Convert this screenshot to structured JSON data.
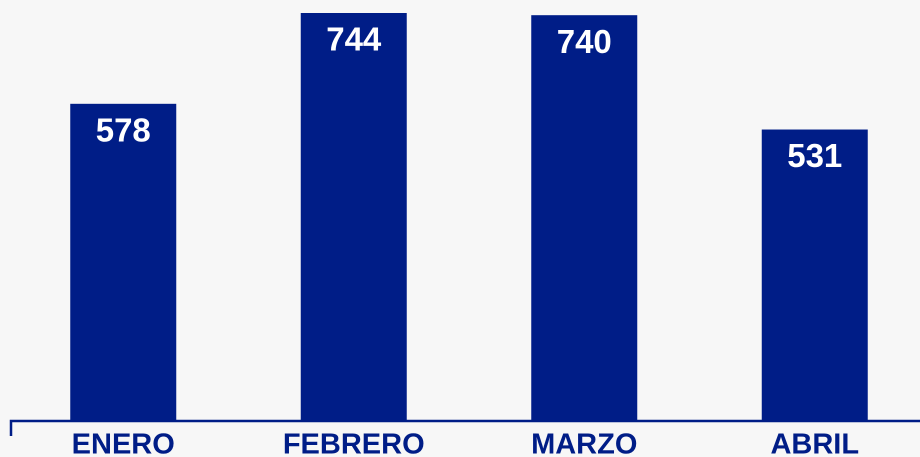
{
  "chart_data": {
    "type": "bar",
    "categories": [
      "ENERO",
      "FEBRERO",
      "MARZO",
      "ABRIL"
    ],
    "values": [
      578,
      744,
      740,
      531
    ],
    "color": "#001d87",
    "ylim": [
      0,
      744
    ]
  }
}
